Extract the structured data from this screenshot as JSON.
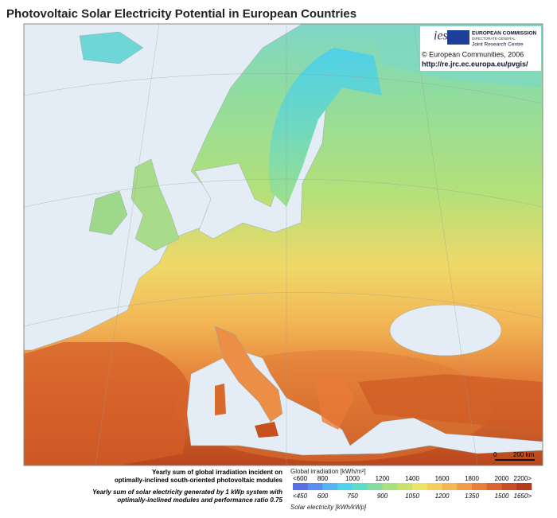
{
  "header": {
    "title": "Photovoltaic Solar Electricity Potential in European Countries"
  },
  "logo": {
    "ies": "ies",
    "commission": "EUROPEAN COMMISSION",
    "directorate": "DIRECTORATE-GENERAL",
    "centre": "Joint Research Centre",
    "copyright": "© European Communities, 2006",
    "url": "http://re.jrc.ec.europa.eu/pvgis/"
  },
  "scale_bar": {
    "start": "0",
    "end": "200 km"
  },
  "legend": {
    "irradiation": {
      "description": "Yearly sum of global irradiation incident on optimally-inclined south-oriented photovoltaic modules",
      "unit": "Global irradiation [kWh/m²]",
      "labels": [
        "<600",
        "800",
        "1000",
        "1200",
        "1400",
        "1600",
        "1800",
        "2000",
        "2200>"
      ]
    },
    "electricity": {
      "description": "Yearly sum of solar electricity generated by 1 kWp system with optimally-inclined modules and performance ratio 0.75",
      "unit": "Solar electricity [kWh/kWp]",
      "labels": [
        "<450",
        "600",
        "750",
        "900",
        "1050",
        "1200",
        "1350",
        "1500",
        "1650>"
      ]
    }
  }
}
